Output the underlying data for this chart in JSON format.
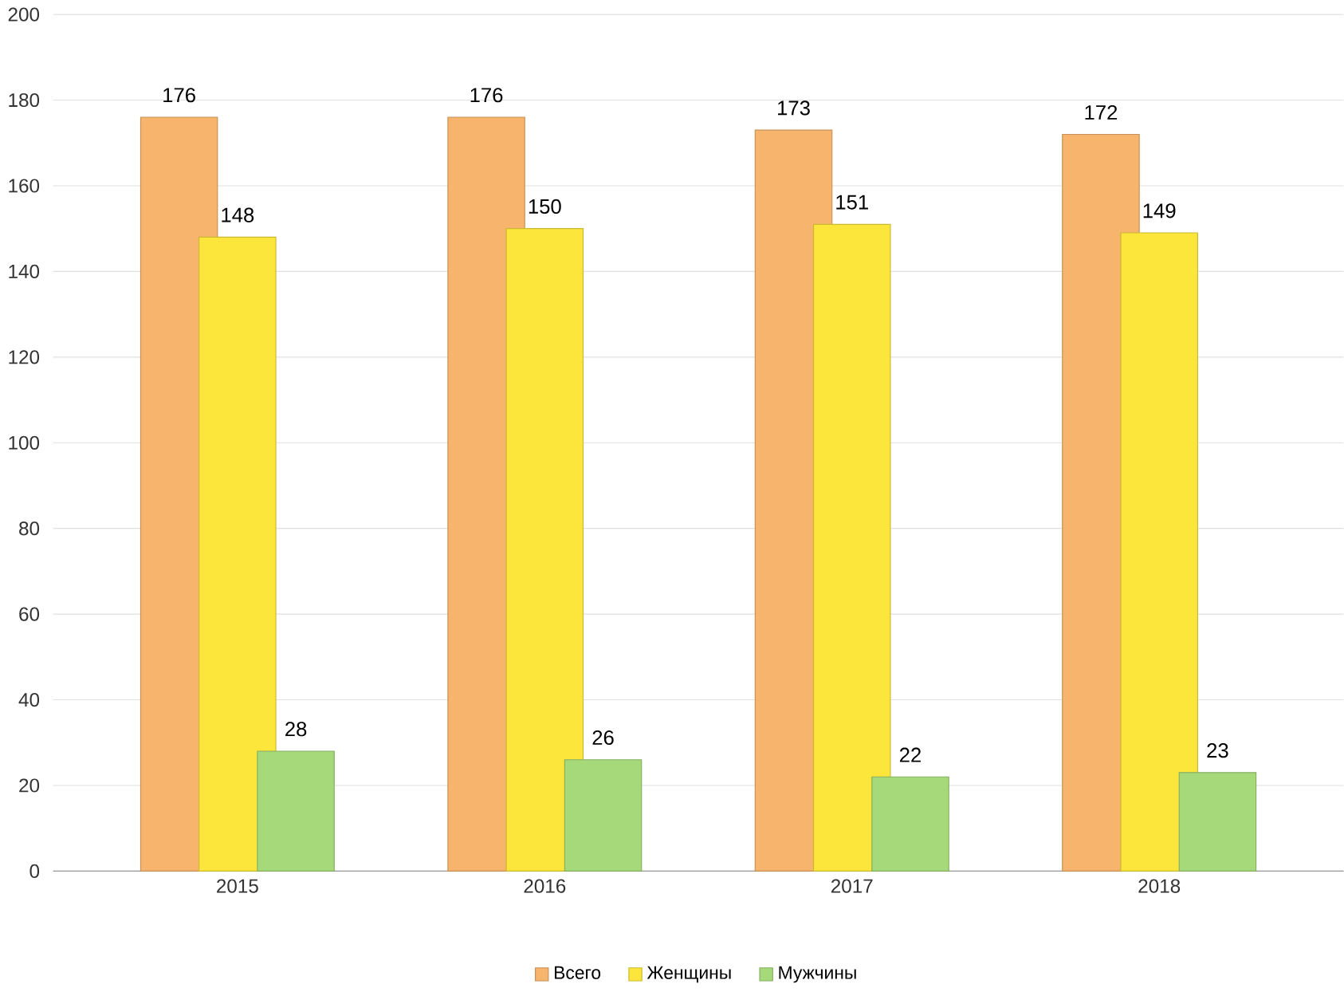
{
  "chart_data": {
    "type": "bar",
    "categories": [
      "2015",
      "2016",
      "2017",
      "2018"
    ],
    "series": [
      {
        "name": "Всего",
        "color": "#f7b46c",
        "values": [
          176,
          176,
          173,
          172
        ]
      },
      {
        "name": "Женщины",
        "color": "#fde63c",
        "values": [
          148,
          150,
          151,
          149
        ]
      },
      {
        "name": "Мужчины",
        "color": "#a6d97a",
        "values": [
          28,
          26,
          22,
          23
        ]
      }
    ],
    "ylim": [
      0,
      200
    ],
    "yticks": [
      0,
      20,
      40,
      60,
      80,
      100,
      120,
      140,
      160,
      180,
      200
    ],
    "grid": "y",
    "legend": "bottom",
    "data_labels": true
  }
}
